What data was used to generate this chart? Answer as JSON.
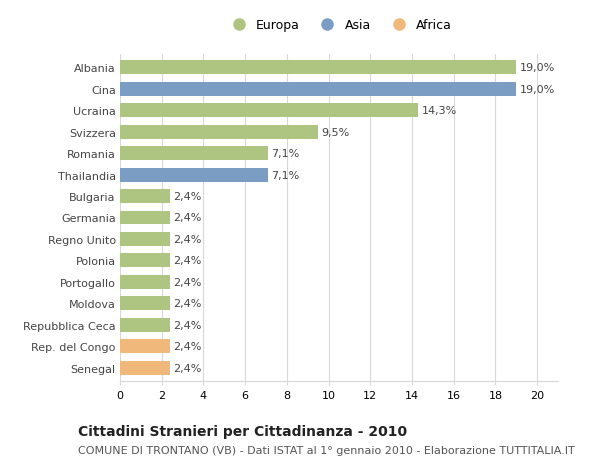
{
  "categories": [
    "Albania",
    "Cina",
    "Ucraina",
    "Svizzera",
    "Romania",
    "Thailandia",
    "Bulgaria",
    "Germania",
    "Regno Unito",
    "Polonia",
    "Portogallo",
    "Moldova",
    "Repubblica Ceca",
    "Rep. del Congo",
    "Senegal"
  ],
  "values": [
    19.0,
    19.0,
    14.3,
    9.5,
    7.1,
    7.1,
    2.4,
    2.4,
    2.4,
    2.4,
    2.4,
    2.4,
    2.4,
    2.4,
    2.4
  ],
  "continents": [
    "Europa",
    "Asia",
    "Europa",
    "Europa",
    "Europa",
    "Asia",
    "Europa",
    "Europa",
    "Europa",
    "Europa",
    "Europa",
    "Europa",
    "Europa",
    "Africa",
    "Africa"
  ],
  "labels": [
    "19,0%",
    "19,0%",
    "14,3%",
    "9,5%",
    "7,1%",
    "7,1%",
    "2,4%",
    "2,4%",
    "2,4%",
    "2,4%",
    "2,4%",
    "2,4%",
    "2,4%",
    "2,4%",
    "2,4%"
  ],
  "colors": {
    "Europa": "#aec481",
    "Asia": "#7b9dc4",
    "Africa": "#f0b87a"
  },
  "title_bold": "Cittadini Stranieri per Cittadinanza - 2010",
  "subtitle": "COMUNE DI TRONTANO (VB) - Dati ISTAT al 1° gennaio 2010 - Elaborazione TUTTITALIA.IT",
  "xlim": [
    0,
    21
  ],
  "xticks": [
    0,
    2,
    4,
    6,
    8,
    10,
    12,
    14,
    16,
    18,
    20
  ],
  "background_color": "#ffffff",
  "grid_color": "#d8d8d8",
  "bar_height": 0.65,
  "label_fontsize": 8,
  "tick_fontsize": 8,
  "ytick_fontsize": 8,
  "title_fontsize": 10,
  "subtitle_fontsize": 8,
  "legend_fontsize": 9
}
